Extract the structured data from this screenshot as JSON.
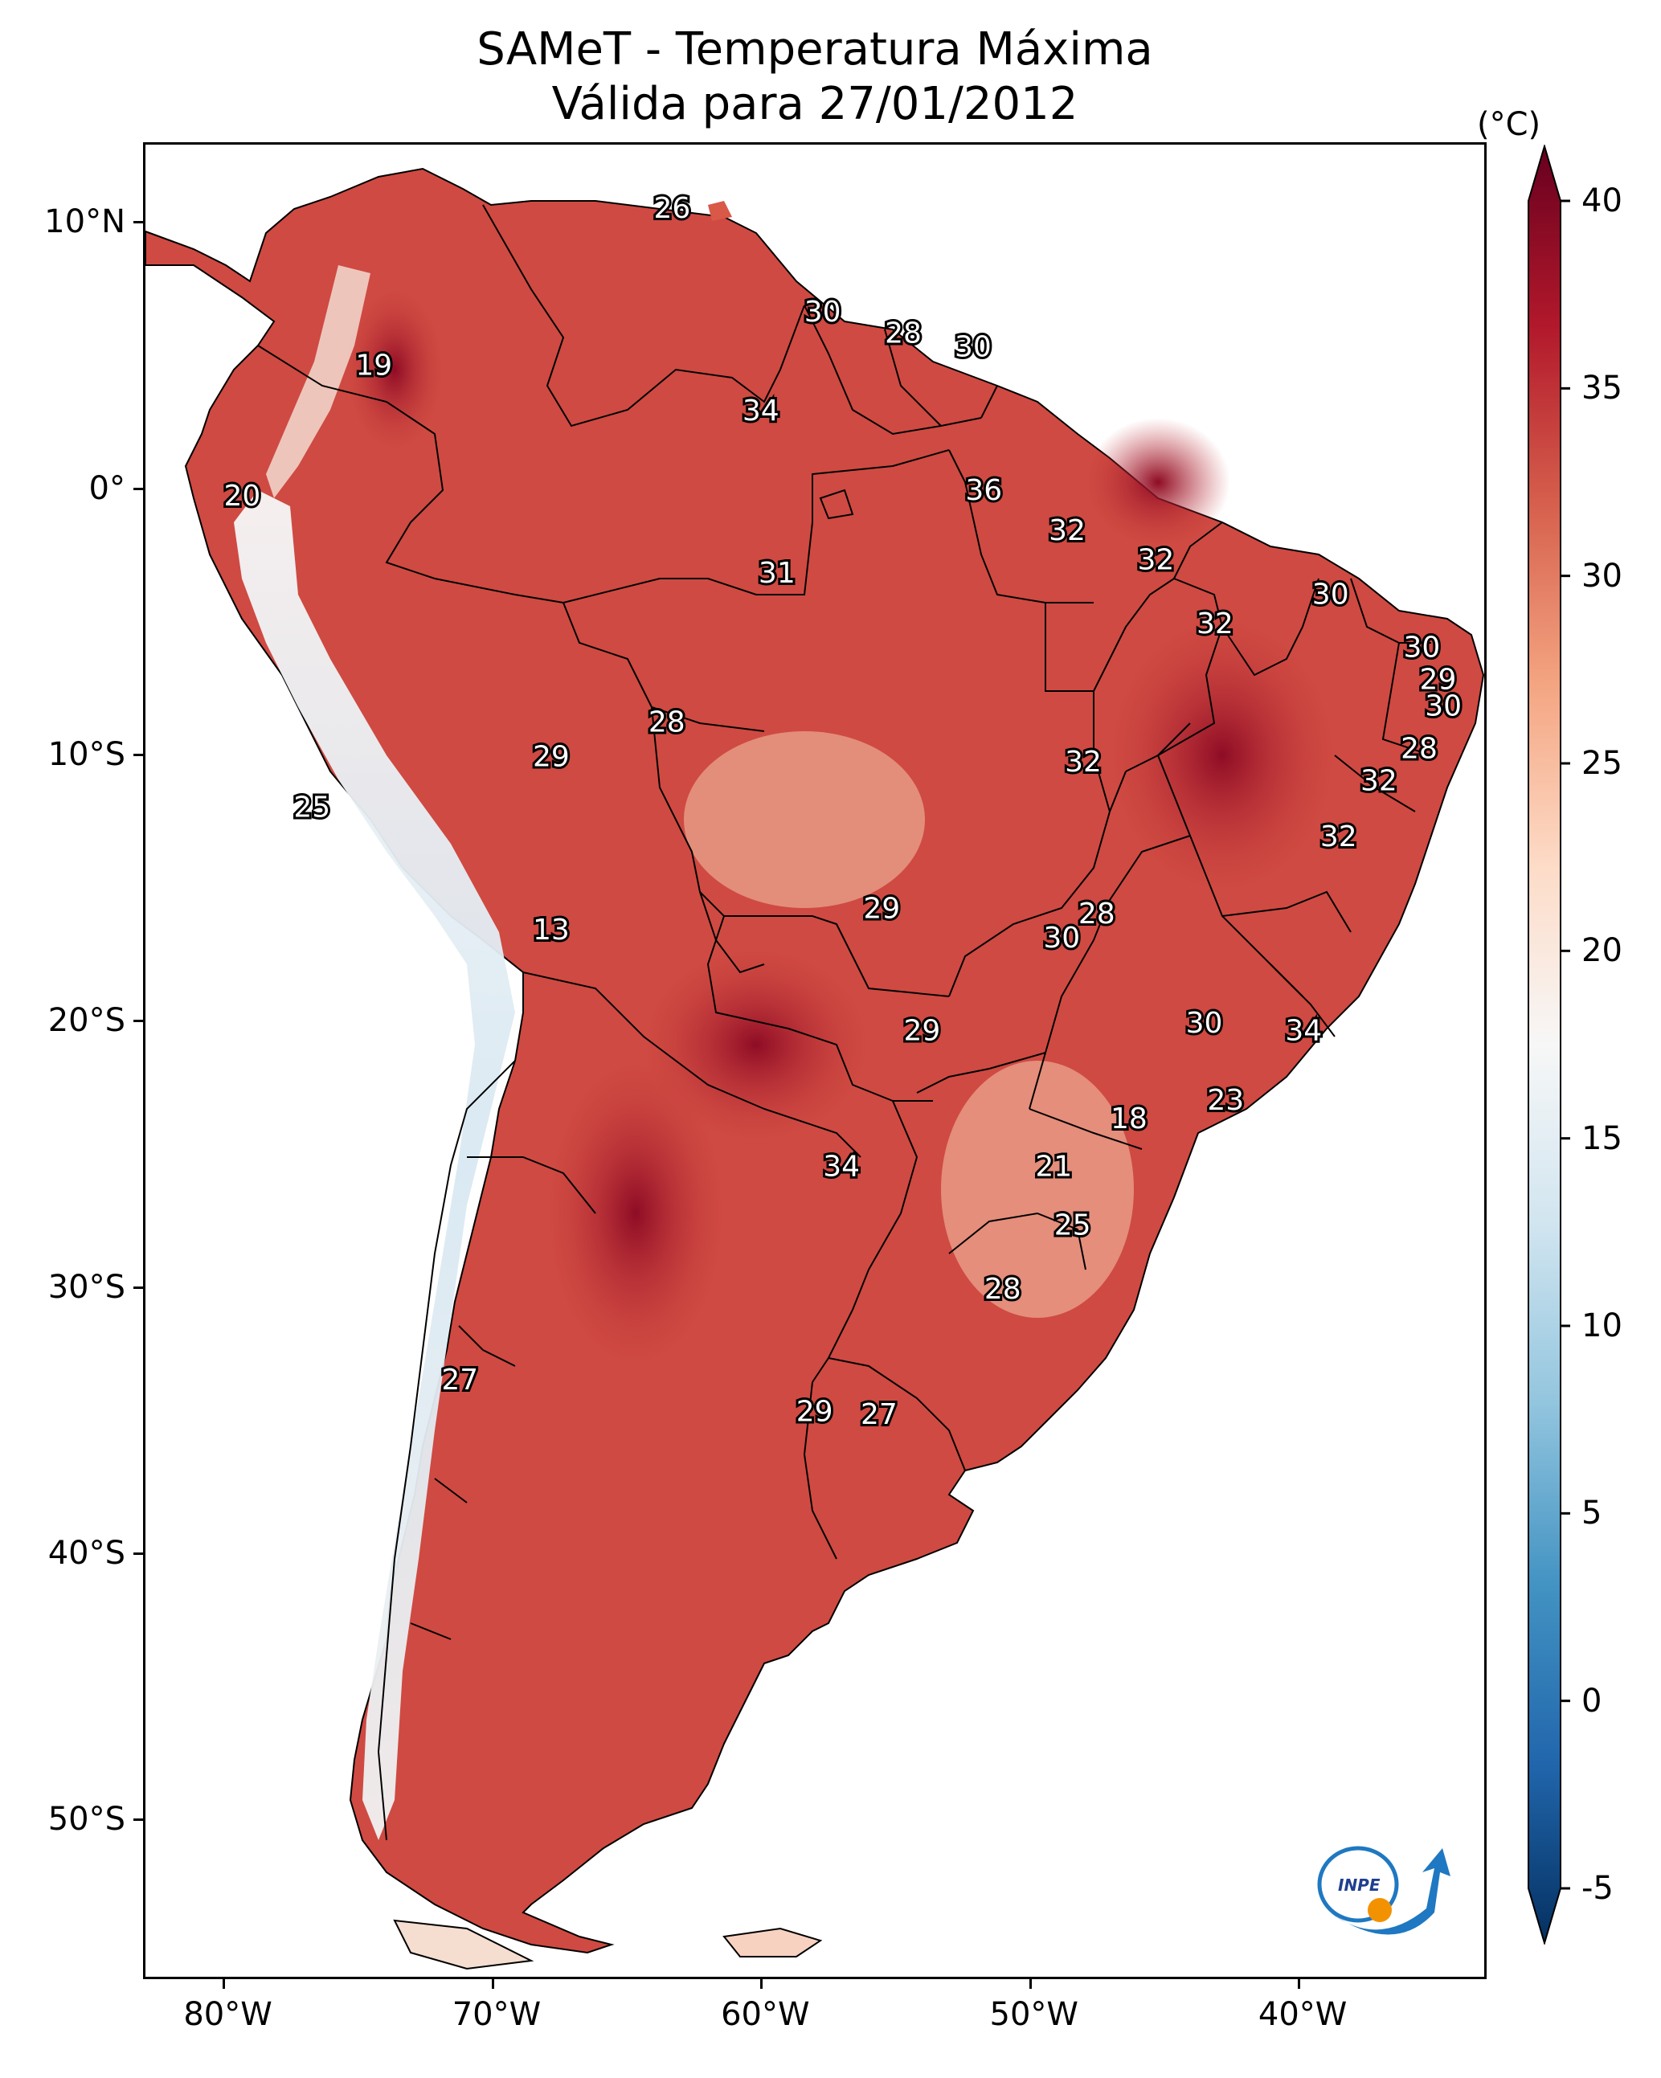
{
  "title": {
    "line1": "SAMeT - Temperatura Máxima",
    "line2": "Válida para 27/01/2012"
  },
  "map": {
    "lon_range": [
      -83,
      -33
    ],
    "lat_range": [
      -56,
      13
    ],
    "lon_ticks": [
      {
        "value": -80,
        "label": "80°W"
      },
      {
        "value": -70,
        "label": "70°W"
      },
      {
        "value": -60,
        "label": "60°W"
      },
      {
        "value": -50,
        "label": "50°W"
      },
      {
        "value": -40,
        "label": "40°W"
      }
    ],
    "lat_ticks": [
      {
        "value": 10,
        "label": "10°N"
      },
      {
        "value": 0,
        "label": "0°"
      },
      {
        "value": -10,
        "label": "10°S"
      },
      {
        "value": -20,
        "label": "20°S"
      },
      {
        "value": -30,
        "label": "30°S"
      },
      {
        "value": -40,
        "label": "40°S"
      },
      {
        "value": -50,
        "label": "50°S"
      }
    ],
    "labels": [
      {
        "lon": -63.4,
        "lat": 10.6,
        "text": "26"
      },
      {
        "lon": -57.8,
        "lat": 6.7,
        "text": "30"
      },
      {
        "lon": -54.8,
        "lat": 5.9,
        "text": "28"
      },
      {
        "lon": -52.2,
        "lat": 5.4,
        "text": "30"
      },
      {
        "lon": -74.5,
        "lat": 4.7,
        "text": "19"
      },
      {
        "lon": -60.1,
        "lat": 3.0,
        "text": "34"
      },
      {
        "lon": -51.8,
        "lat": 0.0,
        "text": "36"
      },
      {
        "lon": -79.4,
        "lat": -0.2,
        "text": "20"
      },
      {
        "lon": -48.7,
        "lat": -1.5,
        "text": "32"
      },
      {
        "lon": -45.4,
        "lat": -2.6,
        "text": "32"
      },
      {
        "lon": -59.5,
        "lat": -3.1,
        "text": "31"
      },
      {
        "lon": -38.9,
        "lat": -3.9,
        "text": "30"
      },
      {
        "lon": -43.2,
        "lat": -5.0,
        "text": "32"
      },
      {
        "lon": -35.5,
        "lat": -5.9,
        "text": "30"
      },
      {
        "lon": -34.9,
        "lat": -7.1,
        "text": "29"
      },
      {
        "lon": -34.7,
        "lat": -8.1,
        "text": "30"
      },
      {
        "lon": -63.6,
        "lat": -8.7,
        "text": "28"
      },
      {
        "lon": -35.6,
        "lat": -9.7,
        "text": "28"
      },
      {
        "lon": -67.9,
        "lat": -10.0,
        "text": "29"
      },
      {
        "lon": -48.1,
        "lat": -10.2,
        "text": "32"
      },
      {
        "lon": -37.1,
        "lat": -10.9,
        "text": "32"
      },
      {
        "lon": -76.8,
        "lat": -11.9,
        "text": "25"
      },
      {
        "lon": -38.6,
        "lat": -13.0,
        "text": "32"
      },
      {
        "lon": -55.6,
        "lat": -15.7,
        "text": "29"
      },
      {
        "lon": -47.6,
        "lat": -15.9,
        "text": "28"
      },
      {
        "lon": -48.9,
        "lat": -16.8,
        "text": "30"
      },
      {
        "lon": -67.9,
        "lat": -16.5,
        "text": "13"
      },
      {
        "lon": -54.1,
        "lat": -20.3,
        "text": "29"
      },
      {
        "lon": -43.6,
        "lat": -20.0,
        "text": "30"
      },
      {
        "lon": -39.9,
        "lat": -20.3,
        "text": "34"
      },
      {
        "lon": -42.8,
        "lat": -22.9,
        "text": "23"
      },
      {
        "lon": -46.4,
        "lat": -23.6,
        "text": "18"
      },
      {
        "lon": -57.1,
        "lat": -25.4,
        "text": "34"
      },
      {
        "lon": -49.2,
        "lat": -25.4,
        "text": "21"
      },
      {
        "lon": -48.5,
        "lat": -27.6,
        "text": "25"
      },
      {
        "lon": -51.1,
        "lat": -30.0,
        "text": "28"
      },
      {
        "lon": -71.3,
        "lat": -33.4,
        "text": "27"
      },
      {
        "lon": -58.1,
        "lat": -34.6,
        "text": "29"
      },
      {
        "lon": -55.7,
        "lat": -34.7,
        "text": "27"
      }
    ]
  },
  "colorbar": {
    "unit": "(°C)",
    "min": -5,
    "max": 40,
    "ticks": [
      "-5",
      "0",
      "5",
      "10",
      "15",
      "20",
      "25",
      "30",
      "35",
      "40"
    ],
    "colors": [
      "#053061",
      "#2166ac",
      "#4393c3",
      "#92c5de",
      "#d1e5f0",
      "#f7f7f7",
      "#fddbc7",
      "#f4a582",
      "#d6604d",
      "#b2182b",
      "#67001f"
    ],
    "extend": "both"
  },
  "logo": {
    "text": "INPE",
    "colors": {
      "blue": "#1f78c1",
      "orange": "#f39200"
    }
  }
}
